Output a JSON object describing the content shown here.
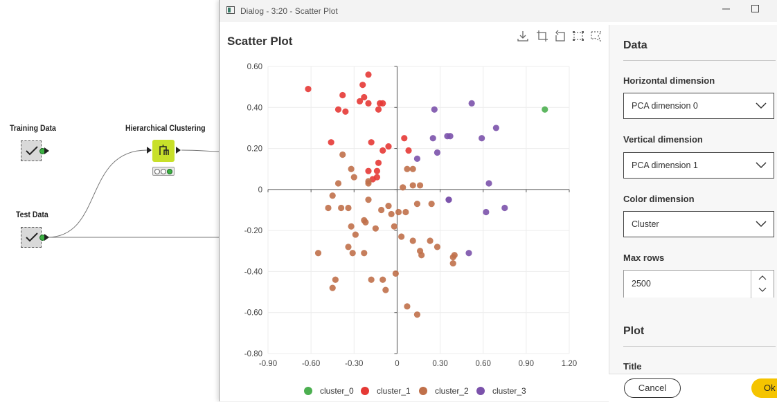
{
  "workflow": {
    "nodes": [
      {
        "label": "Training Data",
        "status": "executed"
      },
      {
        "label": "Hierarchical Clustering",
        "status": "executed"
      },
      {
        "label": "Test Data",
        "status": "executed"
      }
    ]
  },
  "dialog": {
    "title": "Dialog - 3:20 - Scatter Plot",
    "plot_title": "Scatter Plot",
    "toolbar_icons": [
      "download-icon",
      "crop-icon",
      "undo-zoom-icon",
      "box-select-icon",
      "lasso-select-icon"
    ]
  },
  "settings": {
    "data_section": "Data",
    "horizontal_label": "Horizontal dimension",
    "horizontal_value": "PCA dimension 0",
    "vertical_label": "Vertical dimension",
    "vertical_value": "PCA dimension 1",
    "color_label": "Color dimension",
    "color_value": "Cluster",
    "max_rows_label": "Max rows",
    "max_rows_value": "2500",
    "plot_section": "Plot",
    "title_label": "Title"
  },
  "buttons": {
    "cancel": "Cancel",
    "ok": "Ok"
  },
  "chart_data": {
    "type": "scatter",
    "xlim": [
      -0.9,
      1.2
    ],
    "ylim": [
      -0.8,
      0.6
    ],
    "x_ticks": [
      "-0.90",
      "-0.60",
      "-0.30",
      "0",
      "0.30",
      "0.60",
      "0.90",
      "1.20"
    ],
    "y_ticks": [
      "0.60",
      "0.40",
      "0.20",
      "0",
      "-0.20",
      "-0.40",
      "-0.60",
      "-0.80"
    ],
    "grid": true,
    "legend_position": "bottom",
    "series": [
      {
        "name": "cluster_0",
        "color": "#4caf50",
        "points": [
          [
            1.03,
            0.39
          ]
        ]
      },
      {
        "name": "cluster_1",
        "color": "#e53935",
        "points": [
          [
            -0.62,
            0.49
          ],
          [
            -0.2,
            0.56
          ],
          [
            -0.24,
            0.51
          ],
          [
            -0.38,
            0.46
          ],
          [
            -0.23,
            0.45
          ],
          [
            -0.26,
            0.43
          ],
          [
            -0.2,
            0.42
          ],
          [
            -0.1,
            0.42
          ],
          [
            -0.12,
            0.42
          ],
          [
            -0.41,
            0.39
          ],
          [
            -0.36,
            0.38
          ],
          [
            -0.13,
            0.39
          ],
          [
            -0.46,
            0.23
          ],
          [
            -0.18,
            0.23
          ],
          [
            -0.06,
            0.21
          ],
          [
            -0.1,
            0.19
          ],
          [
            0.05,
            0.25
          ],
          [
            0.08,
            0.19
          ],
          [
            -0.13,
            0.13
          ],
          [
            -0.2,
            0.09
          ],
          [
            -0.14,
            0.09
          ],
          [
            -0.17,
            0.05
          ],
          [
            -0.14,
            0.06
          ]
        ]
      },
      {
        "name": "cluster_2",
        "color": "#c0704a",
        "points": [
          [
            -0.38,
            0.17
          ],
          [
            -0.32,
            0.1
          ],
          [
            -0.3,
            0.06
          ],
          [
            -0.41,
            0.03
          ],
          [
            -0.45,
            -0.03
          ],
          [
            -0.2,
            0.04
          ],
          [
            -0.2,
            0.03
          ],
          [
            0.07,
            0.1
          ],
          [
            0.11,
            0.1
          ],
          [
            0.11,
            0.02
          ],
          [
            0.16,
            0.02
          ],
          [
            0.04,
            0.01
          ],
          [
            -0.48,
            -0.09
          ],
          [
            -0.39,
            -0.09
          ],
          [
            -0.34,
            -0.09
          ],
          [
            -0.2,
            -0.05
          ],
          [
            -0.11,
            -0.1
          ],
          [
            -0.06,
            -0.08
          ],
          [
            -0.04,
            -0.12
          ],
          [
            0.01,
            -0.11
          ],
          [
            0.06,
            -0.11
          ],
          [
            0.14,
            -0.07
          ],
          [
            0.24,
            -0.07
          ],
          [
            -0.23,
            -0.15
          ],
          [
            -0.22,
            -0.16
          ],
          [
            -0.32,
            -0.18
          ],
          [
            -0.15,
            -0.19
          ],
          [
            -0.02,
            -0.18
          ],
          [
            -0.29,
            -0.22
          ],
          [
            0.03,
            -0.23
          ],
          [
            0.11,
            -0.25
          ],
          [
            0.23,
            -0.25
          ],
          [
            0.28,
            -0.28
          ],
          [
            0.16,
            -0.3
          ],
          [
            -0.34,
            -0.28
          ],
          [
            -0.31,
            -0.31
          ],
          [
            -0.23,
            -0.31
          ],
          [
            -0.55,
            -0.31
          ],
          [
            0.17,
            -0.32
          ],
          [
            0.4,
            -0.32
          ],
          [
            0.39,
            -0.33
          ],
          [
            0.39,
            -0.36
          ],
          [
            -0.01,
            -0.41
          ],
          [
            -0.43,
            -0.44
          ],
          [
            -0.18,
            -0.44
          ],
          [
            -0.1,
            -0.44
          ],
          [
            -0.45,
            -0.48
          ],
          [
            -0.08,
            -0.49
          ],
          [
            0.07,
            -0.57
          ],
          [
            0.14,
            -0.61
          ]
        ]
      },
      {
        "name": "cluster_3",
        "color": "#7b52ab",
        "points": [
          [
            0.52,
            0.42
          ],
          [
            0.26,
            0.39
          ],
          [
            0.69,
            0.3
          ],
          [
            0.37,
            0.26
          ],
          [
            0.35,
            0.26
          ],
          [
            0.25,
            0.25
          ],
          [
            0.59,
            0.25
          ],
          [
            0.28,
            0.18
          ],
          [
            0.14,
            0.15
          ],
          [
            0.64,
            0.03
          ],
          [
            0.36,
            -0.05
          ],
          [
            0.36,
            -0.05
          ],
          [
            0.75,
            -0.09
          ],
          [
            0.62,
            -0.11
          ],
          [
            0.5,
            -0.31
          ]
        ]
      }
    ]
  }
}
